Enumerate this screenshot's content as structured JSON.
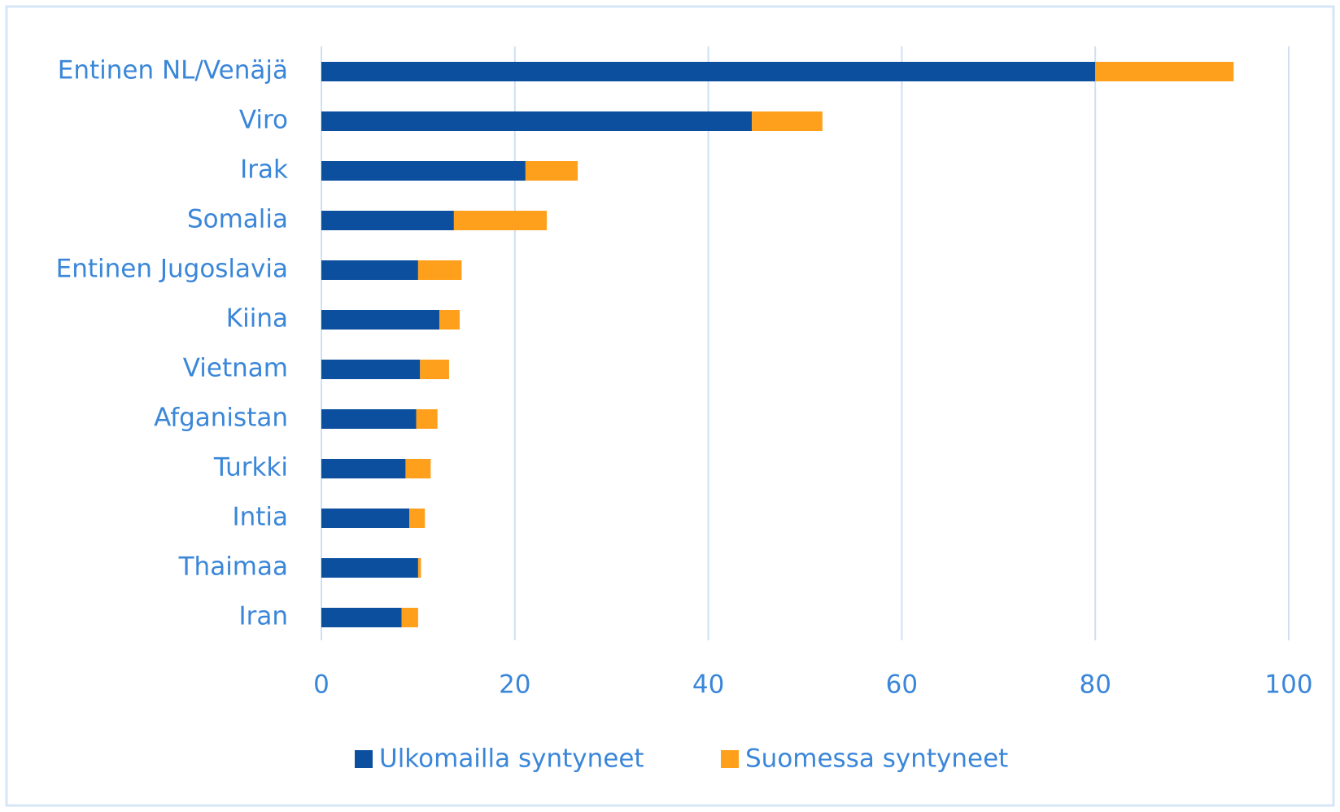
{
  "chart_data": {
    "type": "stacked-bar-horizontal",
    "categories": [
      "Entinen NL/Venäjä",
      "Viro",
      "Irak",
      "Somalia",
      "Entinen Jugoslavia",
      "Kiina",
      "Vietnam",
      "Afganistan",
      "Turkki",
      "Intia",
      "Thaimaa",
      "Iran"
    ],
    "series": [
      {
        "name": "Ulkomailla syntyneet",
        "color": "#0b4f9e",
        "values": [
          80,
          44.5,
          21.1,
          13.7,
          10.0,
          12.2,
          10.2,
          9.8,
          8.7,
          9.1,
          10.0,
          8.3
        ]
      },
      {
        "name": "Suomessa syntyneet",
        "color": "#ffa01c",
        "values": [
          14.3,
          7.3,
          5.4,
          9.6,
          4.5,
          2.1,
          3.0,
          2.2,
          2.6,
          1.6,
          0.3,
          1.7
        ]
      }
    ],
    "xlim": [
      0,
      100
    ],
    "xticks": [
      0,
      20,
      40,
      60,
      80,
      100
    ],
    "grid": true,
    "legend": "bottom"
  }
}
